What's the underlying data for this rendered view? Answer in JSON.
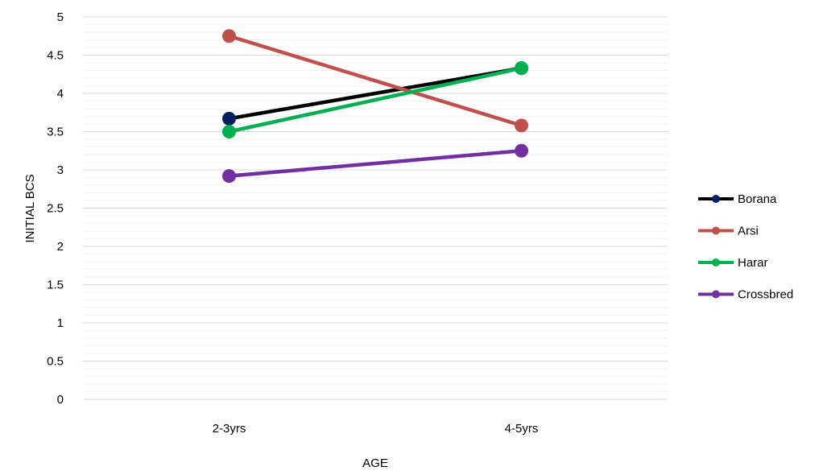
{
  "chart_data": {
    "type": "line",
    "title": "",
    "xlabel": "AGE",
    "ylabel": "INITIAL BCS",
    "categories": [
      "2-3yrs",
      "4-5yrs"
    ],
    "ylim": [
      0,
      5
    ],
    "y_major_step": 0.5,
    "y_minor_step": 0.1,
    "y_tick_labels": [
      "0",
      "0.5",
      "1",
      "1.5",
      "2",
      "2.5",
      "3",
      "3.5",
      "4",
      "4.5",
      "5"
    ],
    "grid": true,
    "legend_position": "right",
    "series": [
      {
        "name": "Borana",
        "values": [
          3.67,
          4.33
        ],
        "color": "#000000",
        "marker_color": "#002060"
      },
      {
        "name": "Arsi",
        "values": [
          4.75,
          3.58
        ],
        "color": "#C0504D",
        "marker_color": "#C0504D"
      },
      {
        "name": "Harar",
        "values": [
          3.5,
          4.33
        ],
        "color": "#00B050",
        "marker_color": "#00B050"
      },
      {
        "name": "Crossbred",
        "values": [
          2.92,
          3.25
        ],
        "color": "#7030A0",
        "marker_color": "#7030A0"
      }
    ]
  }
}
